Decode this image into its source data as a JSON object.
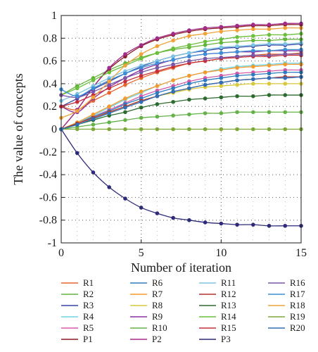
{
  "chart_data": {
    "type": "line",
    "xlabel": "Number of iteration",
    "ylabel": "The value of concepts",
    "xlim": [
      0,
      15
    ],
    "ylim": [
      -1,
      1
    ],
    "xticks": [
      "0",
      "5",
      "10",
      "15"
    ],
    "yticks": [
      "-1",
      "-0.8",
      "-0.6",
      "-0.4",
      "-0.2",
      "0",
      "0.2",
      "0.4",
      "0.6",
      "0.8",
      "1"
    ],
    "grid": "dotted",
    "legend_position": "bottom",
    "legend_columns": 4,
    "x": [
      0,
      1,
      2,
      3,
      4,
      5,
      6,
      7,
      8,
      9,
      10,
      11,
      12,
      13,
      14,
      15
    ],
    "series": [
      {
        "name": "R1",
        "color": "#e8642a",
        "values": [
          0.2,
          0.17,
          0.25,
          0.32,
          0.39,
          0.45,
          0.5,
          0.54,
          0.58,
          0.6,
          0.62,
          0.64,
          0.65,
          0.66,
          0.66,
          0.67
        ]
      },
      {
        "name": "R2",
        "color": "#63b43a",
        "values": [
          0.3,
          0.38,
          0.45,
          0.52,
          0.58,
          0.63,
          0.67,
          0.7,
          0.72,
          0.74,
          0.76,
          0.77,
          0.78,
          0.78,
          0.79,
          0.79
        ]
      },
      {
        "name": "R3",
        "color": "#3344a6",
        "values": [
          0.2,
          0.27,
          0.35,
          0.42,
          0.49,
          0.55,
          0.6,
          0.64,
          0.67,
          0.69,
          0.71,
          0.72,
          0.73,
          0.74,
          0.74,
          0.75
        ]
      },
      {
        "name": "R4",
        "color": "#6fd3e6",
        "values": [
          0.0,
          0.06,
          0.12,
          0.19,
          0.26,
          0.32,
          0.38,
          0.43,
          0.47,
          0.5,
          0.53,
          0.55,
          0.56,
          0.57,
          0.58,
          0.58
        ]
      },
      {
        "name": "R5",
        "color": "#d45aa8",
        "values": [
          0.0,
          0.05,
          0.11,
          0.17,
          0.23,
          0.29,
          0.34,
          0.38,
          0.42,
          0.45,
          0.47,
          0.49,
          0.5,
          0.51,
          0.52,
          0.52
        ]
      },
      {
        "name": "P1",
        "color": "#8a1c22",
        "values": [
          0.0,
          0.17,
          0.37,
          0.53,
          0.64,
          0.73,
          0.79,
          0.83,
          0.86,
          0.88,
          0.89,
          0.9,
          0.91,
          0.91,
          0.92,
          0.92
        ]
      },
      {
        "name": "R6",
        "color": "#2f7bbf",
        "values": [
          0.0,
          0.05,
          0.11,
          0.16,
          0.22,
          0.27,
          0.32,
          0.36,
          0.4,
          0.43,
          0.45,
          0.47,
          0.48,
          0.49,
          0.5,
          0.5
        ]
      },
      {
        "name": "R7",
        "color": "#f39a2e",
        "values": [
          0.0,
          0.06,
          0.13,
          0.2,
          0.27,
          0.33,
          0.38,
          0.43,
          0.47,
          0.5,
          0.52,
          0.54,
          0.55,
          0.56,
          0.57,
          0.57
        ]
      },
      {
        "name": "R8",
        "color": "#d8c93a",
        "values": [
          0.0,
          0.05,
          0.1,
          0.15,
          0.2,
          0.25,
          0.29,
          0.32,
          0.35,
          0.37,
          0.38,
          0.39,
          0.4,
          0.4,
          0.4,
          0.4
        ]
      },
      {
        "name": "R9",
        "color": "#8b2fa0",
        "values": [
          0.2,
          0.15,
          0.27,
          0.37,
          0.45,
          0.52,
          0.57,
          0.61,
          0.64,
          0.66,
          0.67,
          0.68,
          0.68,
          0.69,
          0.69,
          0.69
        ]
      },
      {
        "name": "R10",
        "color": "#66b24a",
        "values": [
          0.0,
          0.02,
          0.04,
          0.06,
          0.08,
          0.1,
          0.11,
          0.12,
          0.13,
          0.14,
          0.14,
          0.15,
          0.15,
          0.15,
          0.15,
          0.15
        ]
      },
      {
        "name": "P2",
        "color": "#a22b8c",
        "values": [
          0.0,
          0.17,
          0.37,
          0.54,
          0.66,
          0.74,
          0.8,
          0.84,
          0.87,
          0.89,
          0.9,
          0.91,
          0.92,
          0.92,
          0.93,
          0.93
        ]
      },
      {
        "name": "R11",
        "color": "#7cc4e3",
        "values": [
          0.25,
          0.31,
          0.38,
          0.45,
          0.51,
          0.56,
          0.6,
          0.64,
          0.67,
          0.7,
          0.72,
          0.73,
          0.74,
          0.75,
          0.75,
          0.76
        ]
      },
      {
        "name": "R12",
        "color": "#b2312c",
        "values": [
          0.0,
          0.05,
          0.1,
          0.15,
          0.2,
          0.25,
          0.29,
          0.33,
          0.36,
          0.39,
          0.41,
          0.43,
          0.44,
          0.45,
          0.46,
          0.46
        ]
      },
      {
        "name": "R13",
        "color": "#2c6b2e",
        "values": [
          0.0,
          0.04,
          0.08,
          0.12,
          0.15,
          0.19,
          0.22,
          0.24,
          0.26,
          0.27,
          0.28,
          0.29,
          0.29,
          0.3,
          0.3,
          0.3
        ]
      },
      {
        "name": "R14",
        "color": "#6bbf3d",
        "values": [
          0.3,
          0.36,
          0.43,
          0.5,
          0.56,
          0.62,
          0.67,
          0.71,
          0.74,
          0.77,
          0.79,
          0.81,
          0.82,
          0.83,
          0.83,
          0.84
        ]
      },
      {
        "name": "R15",
        "color": "#c62f3a",
        "values": [
          0.2,
          0.24,
          0.3,
          0.36,
          0.42,
          0.47,
          0.51,
          0.55,
          0.58,
          0.6,
          0.62,
          0.63,
          0.64,
          0.64,
          0.65,
          0.65
        ]
      },
      {
        "name": "P3",
        "color": "#2e2a7a",
        "values": [
          0.0,
          -0.21,
          -0.38,
          -0.51,
          -0.61,
          -0.69,
          -0.74,
          -0.78,
          -0.8,
          -0.82,
          -0.83,
          -0.84,
          -0.84,
          -0.85,
          -0.85,
          -0.85
        ]
      },
      {
        "name": "R16",
        "color": "#7a56a6",
        "values": [
          0.3,
          0.28,
          0.33,
          0.39,
          0.45,
          0.5,
          0.54,
          0.57,
          0.6,
          0.62,
          0.63,
          0.64,
          0.65,
          0.65,
          0.66,
          0.66
        ]
      },
      {
        "name": "R17",
        "color": "#3c8fd6",
        "values": [
          0.35,
          0.29,
          0.36,
          0.43,
          0.49,
          0.54,
          0.58,
          0.61,
          0.64,
          0.66,
          0.67,
          0.68,
          0.69,
          0.69,
          0.7,
          0.7
        ]
      },
      {
        "name": "R18",
        "color": "#f1a33a",
        "values": [
          0.1,
          0.16,
          0.28,
          0.42,
          0.56,
          0.66,
          0.73,
          0.78,
          0.82,
          0.84,
          0.86,
          0.87,
          0.88,
          0.88,
          0.89,
          0.89
        ]
      },
      {
        "name": "R19",
        "color": "#7fa83b",
        "values": [
          0.0,
          0.0,
          0.0,
          0.0,
          0.0,
          0.0,
          0.0,
          0.0,
          0.0,
          0.0,
          0.0,
          0.0,
          0.0,
          0.0,
          0.0,
          0.0
        ]
      },
      {
        "name": "R20",
        "color": "#2f6fb5",
        "values": [
          0.0,
          0.04,
          0.09,
          0.14,
          0.19,
          0.24,
          0.29,
          0.33,
          0.36,
          0.39,
          0.41,
          0.43,
          0.44,
          0.45,
          0.45,
          0.46
        ]
      }
    ]
  },
  "legend_columns_order": [
    [
      "R1",
      "R2",
      "R3",
      "R4",
      "R5",
      "P1"
    ],
    [
      "R6",
      "R7",
      "R8",
      "R9",
      "R10",
      "P2"
    ],
    [
      "R11",
      "R12",
      "R13",
      "R14",
      "R15",
      "P3"
    ],
    [
      "R16",
      "R17",
      "R18",
      "R19",
      "R20"
    ]
  ]
}
